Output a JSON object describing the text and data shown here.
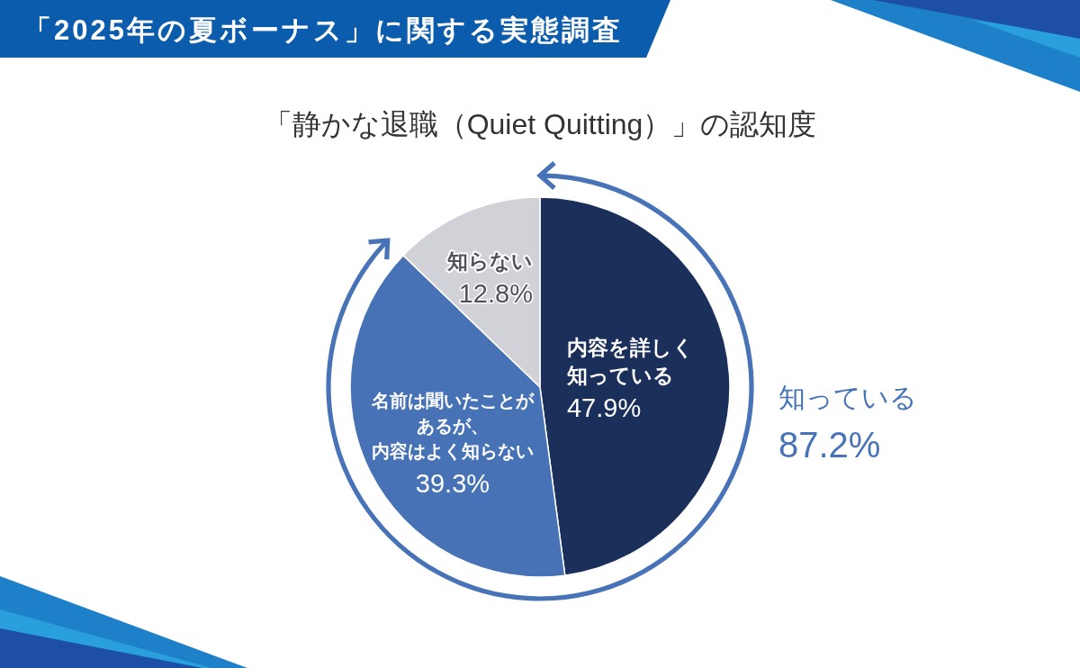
{
  "chart_data": {
    "type": "pie",
    "title": "「2025年の夏ボーナス」に関する実態調査",
    "subtitle": "「静かな退職（Quiet Quitting）」の認知度",
    "categories": [
      "内容を詳しく知っている",
      "名前は聞いたことがあるが、内容はよく知らない",
      "知らない"
    ],
    "values": [
      47.9,
      39.3,
      12.8
    ],
    "colors": [
      "#1b2f5b",
      "#4773b6",
      "#d0d2d8"
    ],
    "value_labels": [
      "47.9%",
      "39.3%",
      "12.8%"
    ],
    "annotations": [
      "知っている",
      "87.2%"
    ]
  }
}
